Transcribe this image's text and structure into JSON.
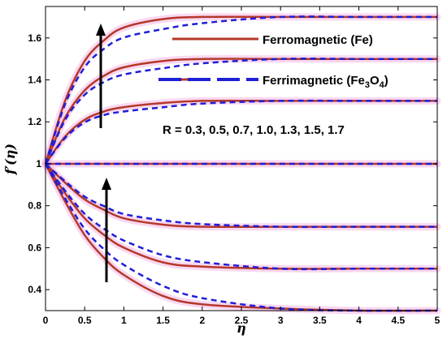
{
  "chart_data": {
    "type": "line",
    "xlabel": "η",
    "ylabel": "f′(η)",
    "xlim": [
      0,
      5
    ],
    "ylim": [
      0.3,
      1.75
    ],
    "x_ticks": [
      0,
      0.5,
      1,
      1.5,
      2,
      2.5,
      3,
      3.5,
      4,
      4.5,
      5
    ],
    "x_tick_labels": [
      "0",
      "0.5",
      "1",
      "1.5",
      "2",
      "2.5",
      "3",
      "3.5",
      "4",
      "4.5",
      "5"
    ],
    "y_ticks": [
      0.4,
      0.6,
      0.8,
      1,
      1.2,
      1.4,
      1.6
    ],
    "y_tick_labels": [
      "0.4",
      "0.6",
      "0.8",
      "1",
      "1.2",
      "1.4",
      "1.6"
    ],
    "grid": false,
    "legend_position": "top-right",
    "legend": [
      {
        "label": "Ferromagnetic (Fe)",
        "style": "solid",
        "color": "#b5382a"
      },
      {
        "label_main": "Ferrimagnetic (Fe",
        "label_sub1": "3",
        "label_mid": "O",
        "label_sub2": "4",
        "label_end": ")",
        "style": "dashed",
        "color": "#1f1fd6"
      }
    ],
    "annotation": "R = 0.3, 0.5, 0.7, 1.0, 1.3, 1.5, 1.7",
    "R_values": [
      0.3,
      0.5,
      0.7,
      1.0,
      1.3,
      1.5,
      1.7
    ],
    "series": [
      {
        "x": [
          0,
          0.25,
          0.5,
          0.75,
          1,
          1.5,
          2,
          3,
          4,
          5
        ],
        "y": [
          1,
          0.82,
          0.66,
          0.55,
          0.47,
          0.37,
          0.33,
          0.31,
          0.3,
          0.3
        ]
      },
      {
        "x": [
          0,
          0.25,
          0.5,
          0.75,
          1,
          1.5,
          2,
          3,
          4,
          5
        ],
        "y": [
          1,
          0.86,
          0.74,
          0.66,
          0.6,
          0.53,
          0.51,
          0.5,
          0.5,
          0.5
        ]
      },
      {
        "x": [
          0,
          0.25,
          0.5,
          0.75,
          1,
          1.5,
          2,
          3,
          4,
          5
        ],
        "y": [
          1,
          0.91,
          0.83,
          0.78,
          0.74,
          0.71,
          0.7,
          0.7,
          0.7,
          0.7
        ]
      },
      {
        "x": [
          0,
          1,
          2,
          3,
          4,
          5
        ],
        "y": [
          1,
          1,
          1,
          1,
          1,
          1
        ]
      },
      {
        "x": [
          0,
          0.25,
          0.5,
          0.75,
          1,
          1.5,
          2,
          3,
          4,
          5
        ],
        "y": [
          1,
          1.13,
          1.21,
          1.25,
          1.27,
          1.29,
          1.3,
          1.3,
          1.3,
          1.3
        ]
      },
      {
        "x": [
          0,
          0.25,
          0.5,
          0.75,
          1,
          1.5,
          2,
          3,
          4,
          5
        ],
        "y": [
          1,
          1.22,
          1.35,
          1.42,
          1.46,
          1.49,
          1.5,
          1.5,
          1.5,
          1.5
        ]
      },
      {
        "x": [
          0,
          0.25,
          0.5,
          0.75,
          1,
          1.5,
          2,
          3,
          4,
          5
        ],
        "y": [
          1,
          1.3,
          1.49,
          1.59,
          1.65,
          1.69,
          1.7,
          1.7,
          1.7,
          1.7
        ]
      }
    ],
    "colors": {
      "solid": "#b5382a",
      "dashed": "#1f1fd6",
      "glow": "#f4b8e6"
    }
  }
}
